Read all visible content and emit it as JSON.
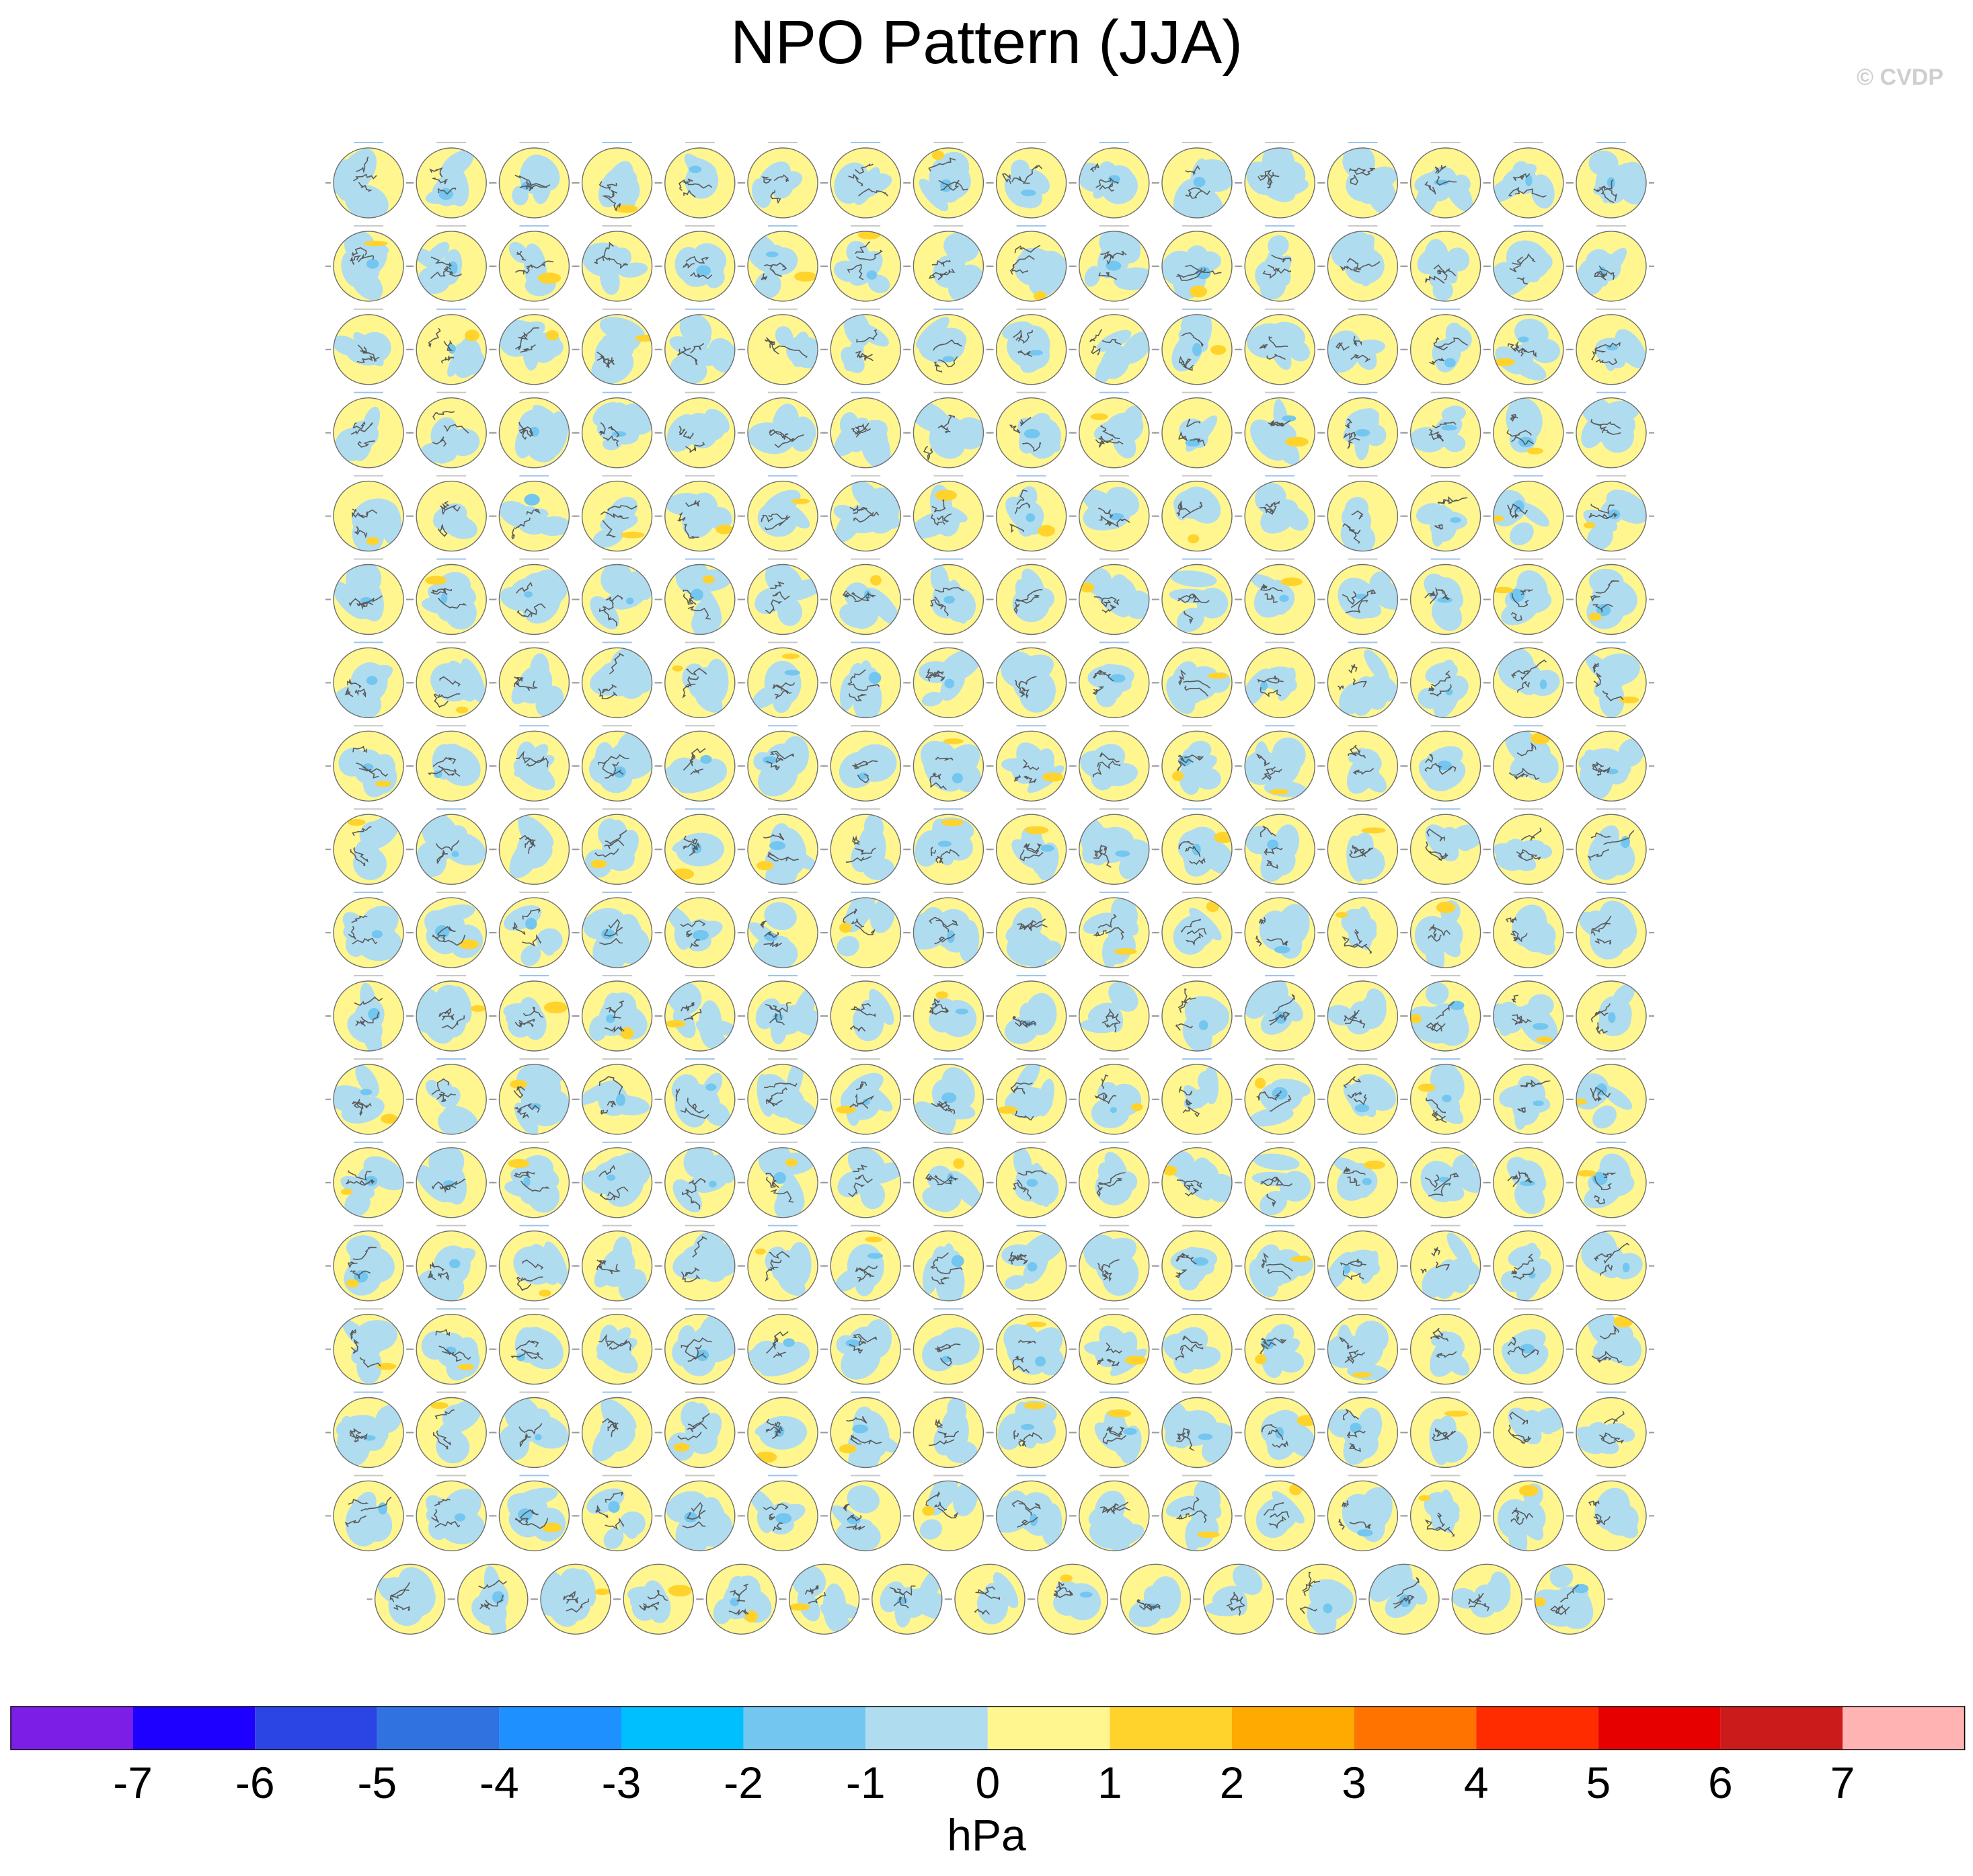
{
  "title": "NPO Pattern (JJA)",
  "copyright": "© CVDP",
  "colors": {
    "fill_levels": [
      "#7d1ee6",
      "#1d00ff",
      "#2b45e5",
      "#2f72e0",
      "#1e90ff",
      "#00bfff",
      "#73c6ef",
      "#b0dcf0",
      "#fff68f",
      "#ffd32b",
      "#ffaa00",
      "#ff7400",
      "#ff2c00",
      "#e60000",
      "#cc1b1b",
      "#ffb3b3"
    ],
    "ocean_positive": "#fff68f",
    "ocean_negative": "#b0dcf0",
    "coastline": "#5a5a5a"
  },
  "chart_data": {
    "type": "heatmap",
    "panel_rows": [
      16,
      16,
      16,
      16,
      16,
      16,
      16,
      16,
      16,
      16,
      16,
      16,
      16,
      16,
      16,
      16,
      16,
      15
    ],
    "panel_count": 287,
    "map_projection": "north polar stereographic",
    "colorbar": {
      "ticks": [
        "-7",
        "-6",
        "-5",
        "-4",
        "-3",
        "-2",
        "-1",
        "0",
        "1",
        "2",
        "3",
        "4",
        "5",
        "6",
        "7"
      ],
      "unit": "hPa",
      "levels": [
        -7,
        -6,
        -5,
        -4,
        -3,
        -2,
        -1,
        0,
        1,
        2,
        3,
        4,
        5,
        6,
        7
      ]
    }
  }
}
